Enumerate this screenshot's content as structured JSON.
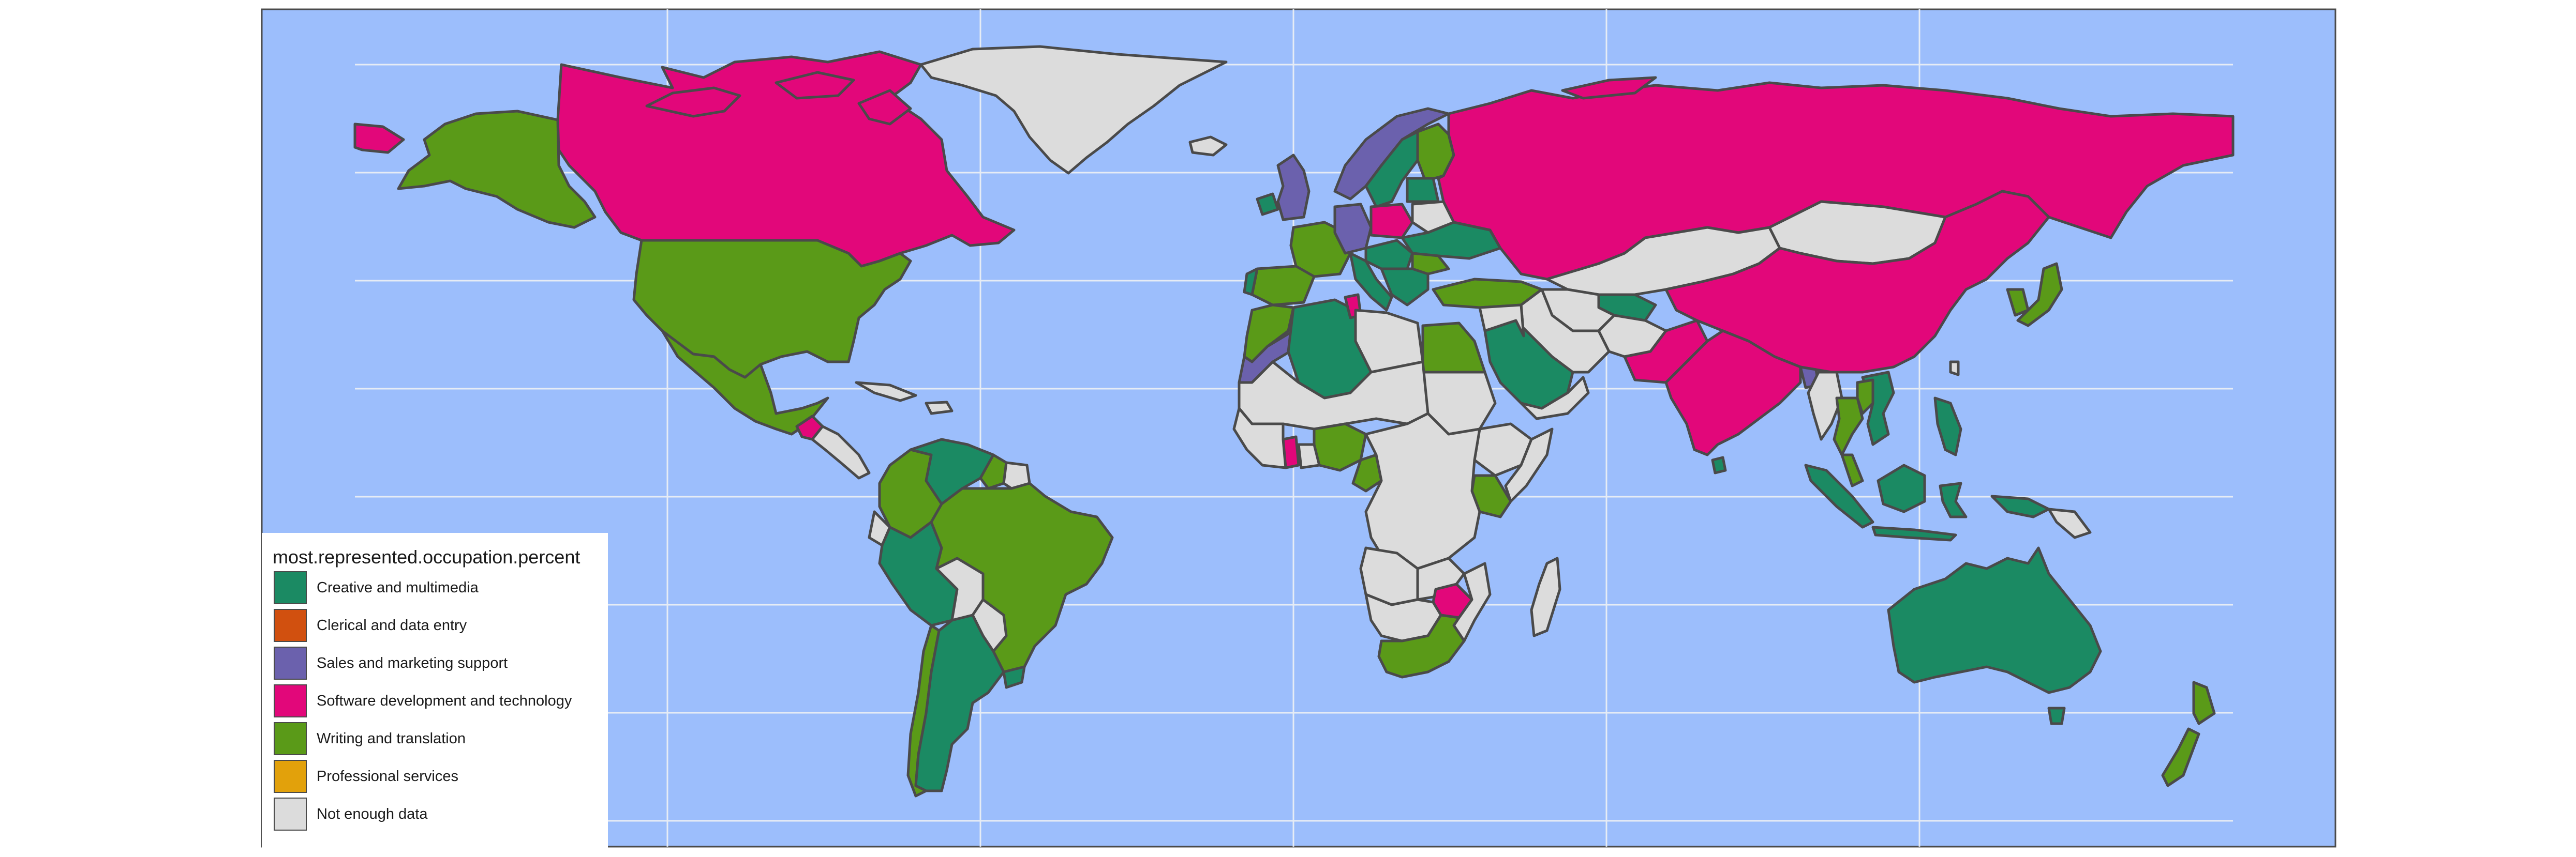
{
  "map": {
    "ocean_color": "#9cbefc",
    "border_color": "#4a4a4a",
    "gridline_color": "#e6ecf5",
    "legend": {
      "title": "most.represented.occupation.percent",
      "items": [
        {
          "label": "Creative and multimedia",
          "color": "#1b8a63"
        },
        {
          "label": "Clerical and data entry",
          "color": "#d1500f"
        },
        {
          "label": "Sales and marketing support",
          "color": "#6b61ad"
        },
        {
          "label": "Software development and technology",
          "color": "#e2077a"
        },
        {
          "label": "Writing and translation",
          "color": "#5a9a18"
        },
        {
          "label": "Professional services",
          "color": "#e2a10b"
        },
        {
          "label": "Not enough data",
          "color": "#dcdcdc"
        }
      ]
    }
  }
}
